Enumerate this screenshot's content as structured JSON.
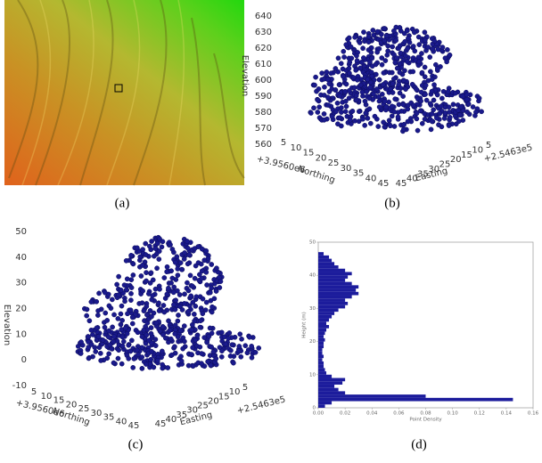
{
  "panel_a": {
    "caption": "(a)"
  },
  "panel_b": {
    "caption": "(b)",
    "elevation_label": "Elevation",
    "elevation_ticks": [
      560,
      570,
      580,
      590,
      600,
      610,
      620,
      630,
      640
    ],
    "northing_label": "Northing",
    "northing_offset": "+3.9560e6",
    "northing_ticks": [
      5,
      10,
      15,
      20,
      25,
      30,
      35,
      40,
      45
    ],
    "easting_label": "Easting",
    "easting_offset": "+2.5463e5",
    "easting_ticks": [
      45,
      40,
      35,
      30,
      25,
      20,
      15,
      10,
      5
    ]
  },
  "panel_c": {
    "caption": "(c)",
    "elevation_label": "Elevation",
    "elevation_ticks": [
      -10,
      0,
      10,
      20,
      30,
      40,
      50
    ],
    "northing_label": "Northing",
    "northing_offset": "+3.9560e6",
    "northing_ticks": [
      5,
      10,
      15,
      20,
      25,
      30,
      35,
      40,
      45
    ],
    "easting_label": "Easting",
    "easting_offset": "+2.5463e5",
    "easting_ticks": [
      45,
      40,
      35,
      30,
      25,
      20,
      15,
      10,
      5
    ]
  },
  "chart_data": {
    "type": "histogram",
    "caption": "(d)",
    "xlabel": "Point Density",
    "ylabel": "Height (m)",
    "bins": [
      0,
      1,
      2,
      3,
      4,
      5,
      6,
      7,
      8,
      9,
      10,
      11,
      12,
      13,
      14,
      15,
      16,
      17,
      18,
      19,
      20,
      21,
      22,
      23,
      24,
      25,
      26,
      27,
      28,
      29,
      30,
      31,
      32,
      33,
      34,
      35,
      36,
      37,
      38,
      39,
      40,
      41,
      42,
      43,
      44,
      45,
      46,
      47
    ],
    "values": [
      0.005,
      0.01,
      0.145,
      0.08,
      0.02,
      0.015,
      0.012,
      0.018,
      0.02,
      0.01,
      0.006,
      0.005,
      0.004,
      0.004,
      0.003,
      0.004,
      0.003,
      0.003,
      0.004,
      0.004,
      0.005,
      0.004,
      0.005,
      0.006,
      0.008,
      0.006,
      0.008,
      0.01,
      0.012,
      0.015,
      0.02,
      0.022,
      0.02,
      0.025,
      0.03,
      0.028,
      0.03,
      0.025,
      0.02,
      0.022,
      0.025,
      0.02,
      0.015,
      0.012,
      0.01,
      0.008,
      0.004
    ],
    "color": "#1c1c9c",
    "xlim": [
      0,
      0.16
    ],
    "ylim": [
      0,
      50
    ],
    "xticks": [
      {
        "value": 0,
        "label": "0.00"
      },
      {
        "value": 0.02,
        "label": "0.02"
      },
      {
        "value": 0.04,
        "label": "0.04"
      },
      {
        "value": 0.06,
        "label": "0.06"
      },
      {
        "value": 0.08,
        "label": "0.08"
      },
      {
        "value": 0.1,
        "label": "0.10"
      },
      {
        "value": 0.12,
        "label": "0.12"
      },
      {
        "value": 0.14,
        "label": "0.14"
      },
      {
        "value": 0.16,
        "label": "0.16"
      }
    ],
    "yticks": [
      0,
      10,
      20,
      30,
      40,
      50
    ]
  }
}
